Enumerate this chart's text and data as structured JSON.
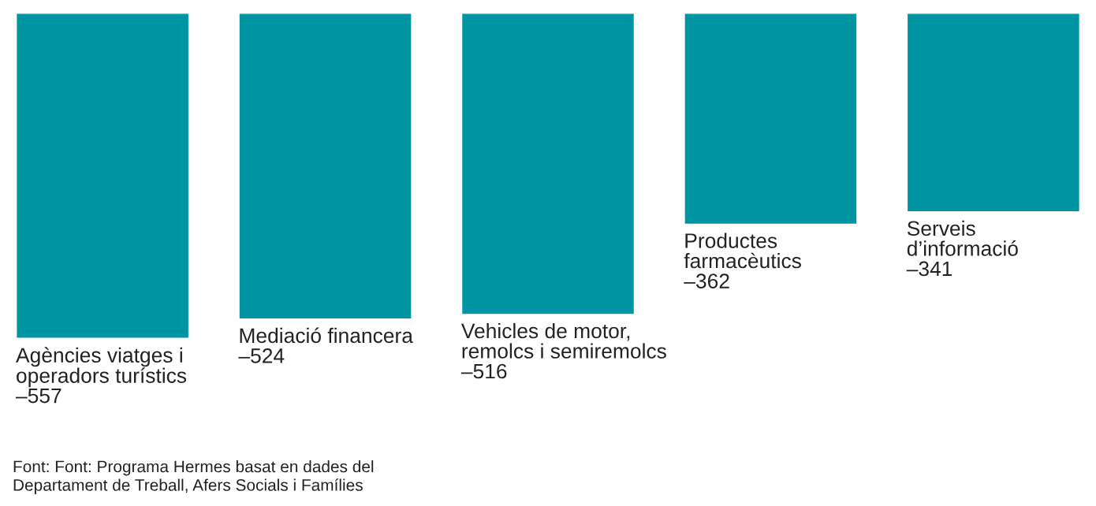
{
  "chart_data": {
    "type": "bar",
    "categories": [
      "Agències viatges i\noperadors turístics",
      "Mediació financera",
      "Vehicles de motor,\nremolcs i semiremolcs",
      "Productes\nfarmacèutics",
      "Serveis\nd’informació"
    ],
    "values": [
      -557,
      -524,
      -516,
      -362,
      -341
    ],
    "value_labels": [
      "–557",
      "–524",
      "–516",
      "–362",
      "–341"
    ],
    "color": "#0095a3",
    "annotations": [
      "Font: Font: Programa Hermes basat en dades del\nDepartament de Treball, Afers Socials i Famílies"
    ]
  }
}
